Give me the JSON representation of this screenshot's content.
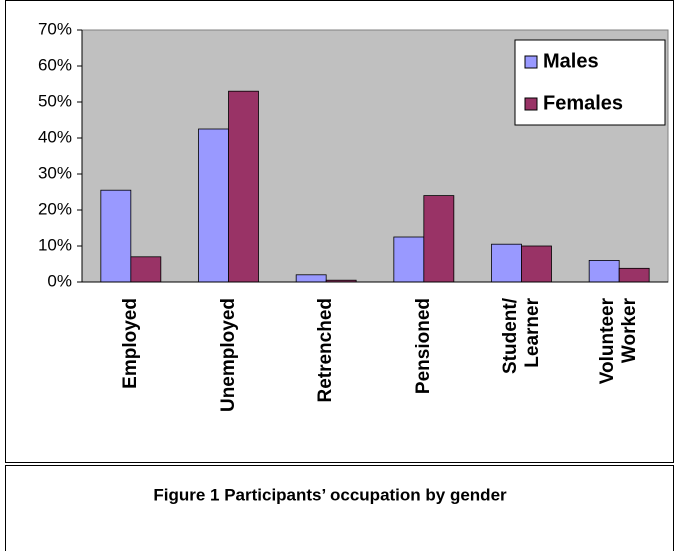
{
  "chart_data": {
    "type": "bar",
    "caption": "Figure 1 Participants’ occupation by gender",
    "categories": [
      "Employed",
      "Unemployed",
      "Retrenched",
      "Pensioned",
      "Student/\nLearner",
      "Volunteer\nWorker"
    ],
    "series": [
      {
        "name": "Males",
        "color": "#9999ff",
        "values": [
          25.5,
          42.5,
          2,
          12.5,
          10.5,
          6
        ]
      },
      {
        "name": "Females",
        "color": "#993366",
        "values": [
          7,
          53,
          0.5,
          24,
          10,
          3.8
        ]
      }
    ],
    "ylim": [
      0,
      70
    ],
    "yticks": [
      {
        "value": 0,
        "label": "0%"
      },
      {
        "value": 10,
        "label": "10%"
      },
      {
        "value": 20,
        "label": "20%"
      },
      {
        "value": 30,
        "label": "30%"
      },
      {
        "value": 40,
        "label": "40%"
      },
      {
        "value": 50,
        "label": "50%"
      },
      {
        "value": 60,
        "label": "60%"
      },
      {
        "value": 70,
        "label": "70%"
      }
    ],
    "legend": "upper right",
    "plot_background": "#c0c0c0"
  }
}
